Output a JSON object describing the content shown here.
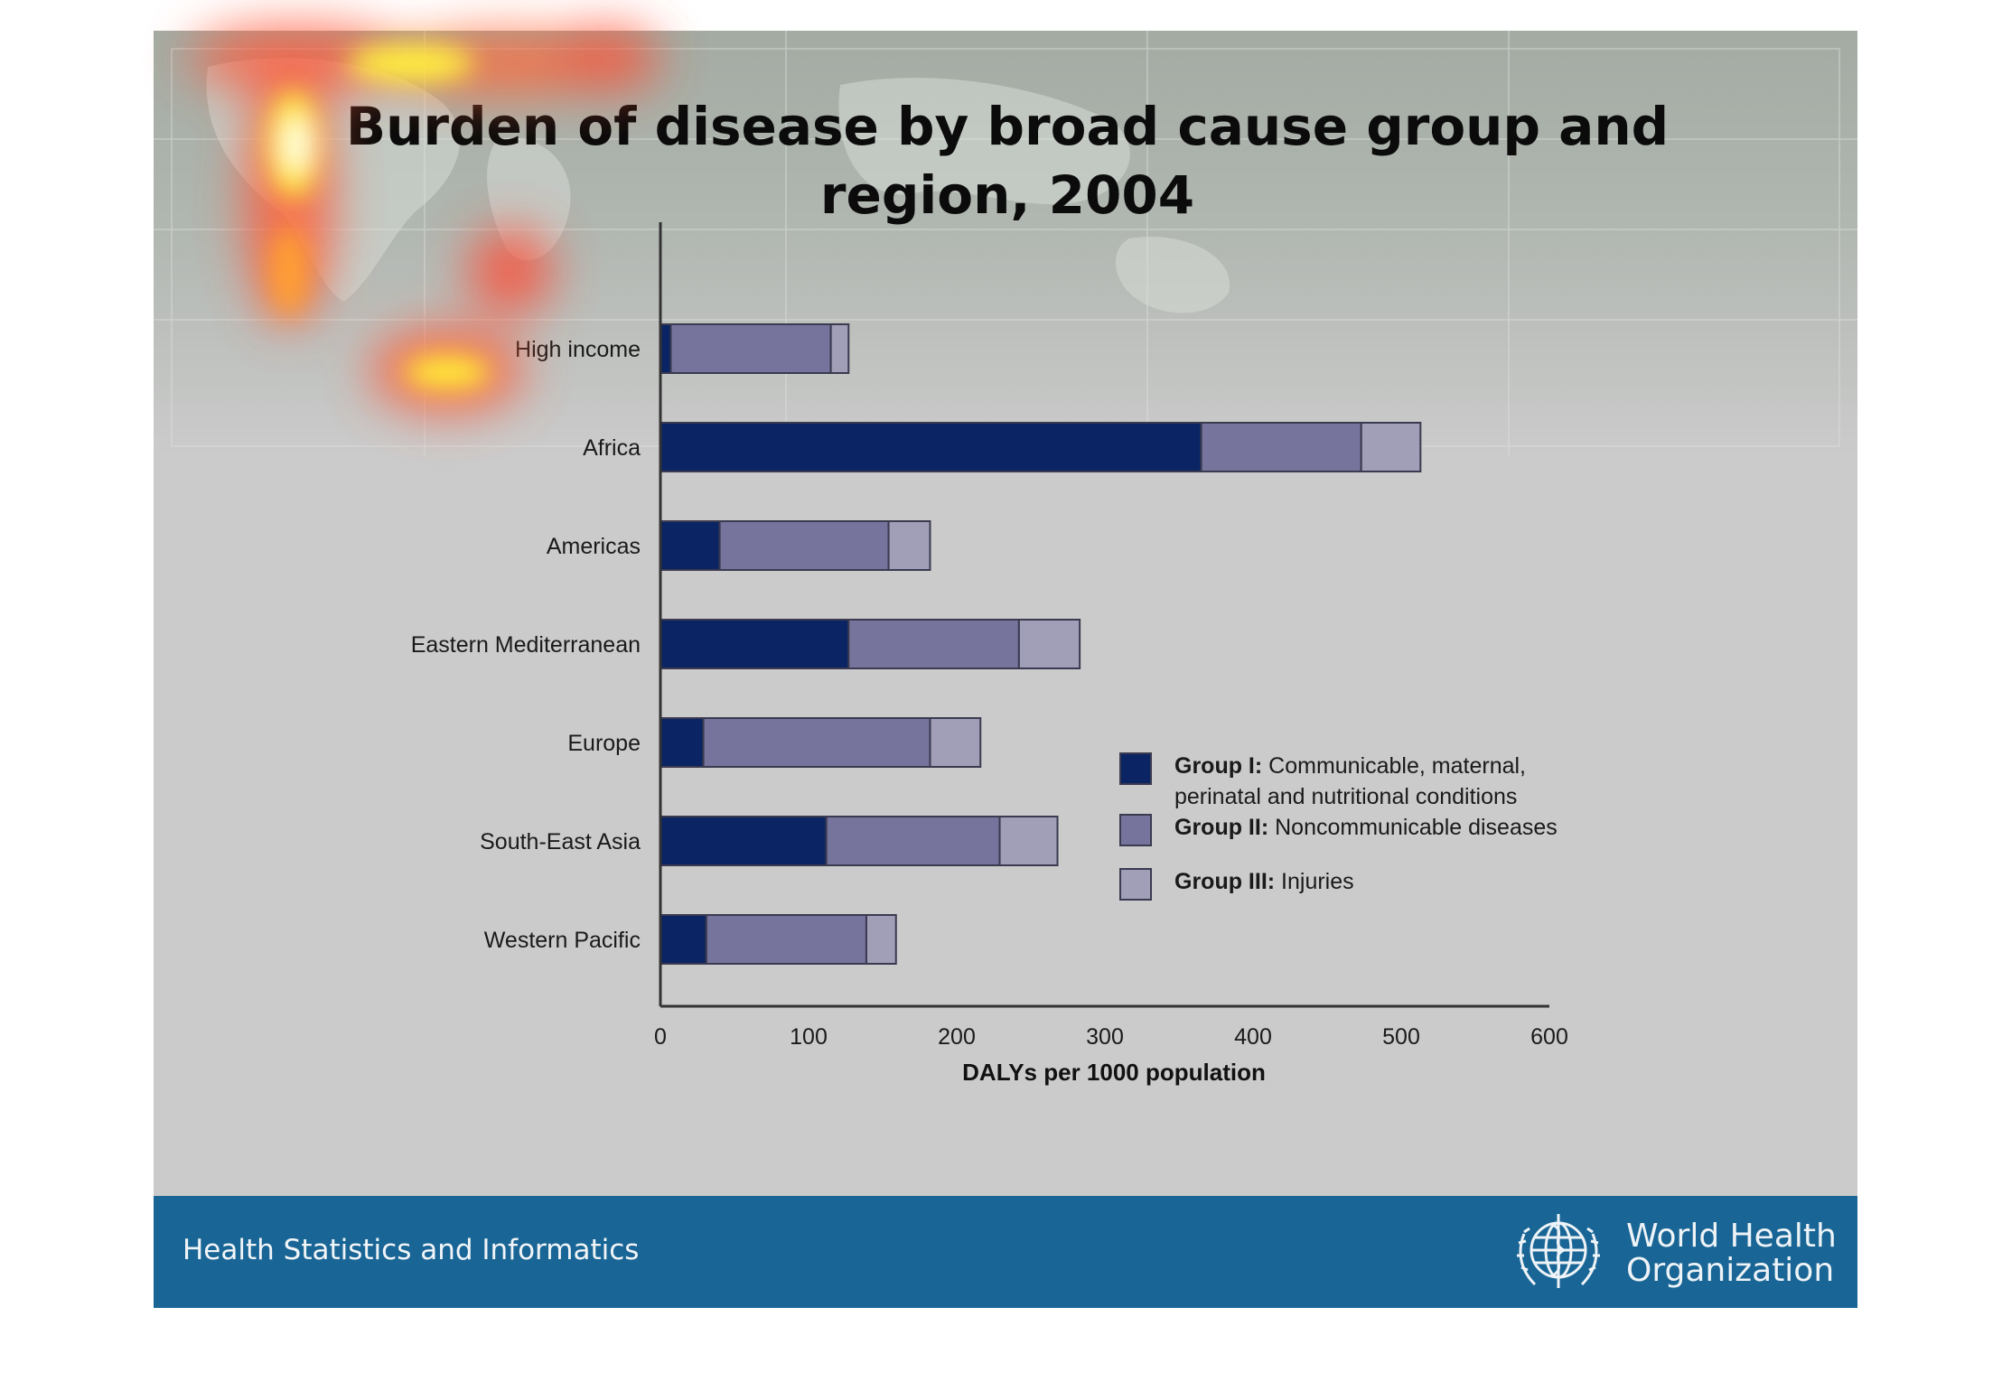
{
  "slide": {
    "title_line1": "Burden of disease by broad cause group and",
    "title_line2": "region, 2004",
    "footer_text": "Health Statistics and Informatics",
    "org_name_line1": "World Health",
    "org_name_line2": "Organization"
  },
  "chart_data": {
    "type": "bar",
    "orientation": "horizontal",
    "stacked": true,
    "title": "Burden of disease by broad cause group and region, 2004",
    "xlabel": "DALYs per 1000 population",
    "ylabel": "",
    "xlim": [
      0,
      600
    ],
    "xticks": [
      0,
      100,
      200,
      300,
      400,
      500,
      600
    ],
    "categories": [
      "High income",
      "Africa",
      "Americas",
      "Eastern Mediterranean",
      "Europe",
      "South-East Asia",
      "Western Pacific"
    ],
    "series": [
      {
        "name": "Group I: Communicable, maternal, perinatal and nutritional conditions",
        "label_bold": "Group I:",
        "label_line1": "Communicable, maternal,",
        "label_line2": "perinatal and nutritional conditions",
        "color": "#0b2463",
        "values": [
          7,
          365,
          40,
          127,
          29,
          112,
          31
        ]
      },
      {
        "name": "Group II: Noncommunicable diseases",
        "label_bold": "Group II:",
        "label_line1": "Noncommunicable diseases",
        "color": "#76749c",
        "values": [
          108,
          108,
          114,
          115,
          153,
          117,
          108
        ]
      },
      {
        "name": "Group III: Injuries",
        "label_bold": "Group III:",
        "label_line1": "Injuries",
        "color": "#a19eb7",
        "values": [
          12,
          40,
          28,
          41,
          34,
          39,
          20
        ]
      }
    ],
    "grid": false,
    "legend_position": "right"
  },
  "colors": {
    "background": "#cbcbcb",
    "footer": "#196696",
    "axis": "#333333"
  },
  "icons": {
    "logo": "who-emblem-icon"
  }
}
